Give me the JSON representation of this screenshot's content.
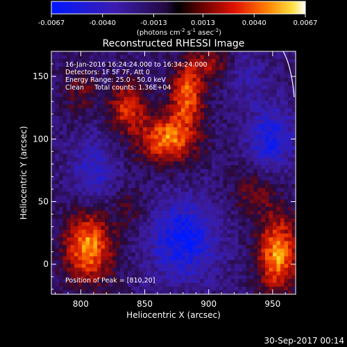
{
  "chart_data": {
    "type": "heatmap",
    "title": "Reconstructed RHESSI Image",
    "xlabel": "Heliocentric X (arcsec)",
    "ylabel": "Heliocentric Y (arcsec)",
    "xlim": [
      777,
      968
    ],
    "ylim": [
      -24,
      170
    ],
    "x_ticks": [
      800,
      850,
      900,
      950
    ],
    "y_ticks": [
      0,
      50,
      100,
      150
    ],
    "colorbar": {
      "range": [
        -0.0067,
        0.0067
      ],
      "ticks": [
        "-0.0067",
        "-0.0040",
        "-0.0013",
        "0.0013",
        "0.0040",
        "0.0067"
      ],
      "tick_values": [
        -0.0067,
        -0.004,
        -0.0013,
        0.0013,
        0.004,
        0.0067
      ],
      "unit_prefix": "(photons cm",
      "unit_exp1": "-2",
      "unit_mid": " s",
      "unit_exp2": "-1",
      "unit_mid2": " asec",
      "unit_exp3": "-2",
      "unit_suffix": ")"
    },
    "annotations": [
      "16-Jan-2016 16:24:24.000 to 16:34:24.000",
      "Detectors: 1F 5F 7F, Att 0",
      "Energy Range: 25.0 - 50.0 keV",
      "Clean     Total counts: 1.36E+04"
    ],
    "peak_label": "Position of Peak = [810,20]",
    "peak_position": [
      810,
      20
    ],
    "sources": [
      {
        "x": 868,
        "y": 100,
        "amp": 0.0062,
        "sx": 16,
        "sy": 14
      },
      {
        "x": 883,
        "y": 135,
        "amp": 0.0058,
        "sx": 9,
        "sy": 16
      },
      {
        "x": 836,
        "y": 125,
        "amp": 0.0046,
        "sx": 10,
        "sy": 14
      },
      {
        "x": 806,
        "y": 14,
        "amp": 0.0067,
        "sx": 13,
        "sy": 20
      },
      {
        "x": 954,
        "y": 8,
        "amp": 0.0066,
        "sx": 11,
        "sy": 22
      },
      {
        "x": 900,
        "y": 160,
        "amp": 0.003,
        "sx": 12,
        "sy": 10
      },
      {
        "x": 838,
        "y": 45,
        "amp": 0.0015,
        "sx": 10,
        "sy": 12
      },
      {
        "x": 935,
        "y": 58,
        "amp": 0.0022,
        "sx": 12,
        "sy": 14
      },
      {
        "x": 800,
        "y": 140,
        "amp": 0.0022,
        "sx": 10,
        "sy": 14
      },
      {
        "x": 880,
        "y": 20,
        "amp": -0.0047,
        "sx": 18,
        "sy": 22
      },
      {
        "x": 948,
        "y": 100,
        "amp": -0.004,
        "sx": 12,
        "sy": 18
      },
      {
        "x": 810,
        "y": 72,
        "amp": -0.0028,
        "sx": 12,
        "sy": 20
      },
      {
        "x": 930,
        "y": 150,
        "amp": -0.0018,
        "sx": 10,
        "sy": 14
      }
    ],
    "grid": false
  },
  "footer": {
    "timestamp": "30-Sep-2017 00:14"
  },
  "colors": {
    "background": "#000000",
    "foreground": "#ffffff",
    "colormap": [
      "#0022ff",
      "#3a1aa0",
      "#2a1060",
      "#400010",
      "#c00000",
      "#ff5000",
      "#ffd000",
      "#ffffff"
    ]
  }
}
